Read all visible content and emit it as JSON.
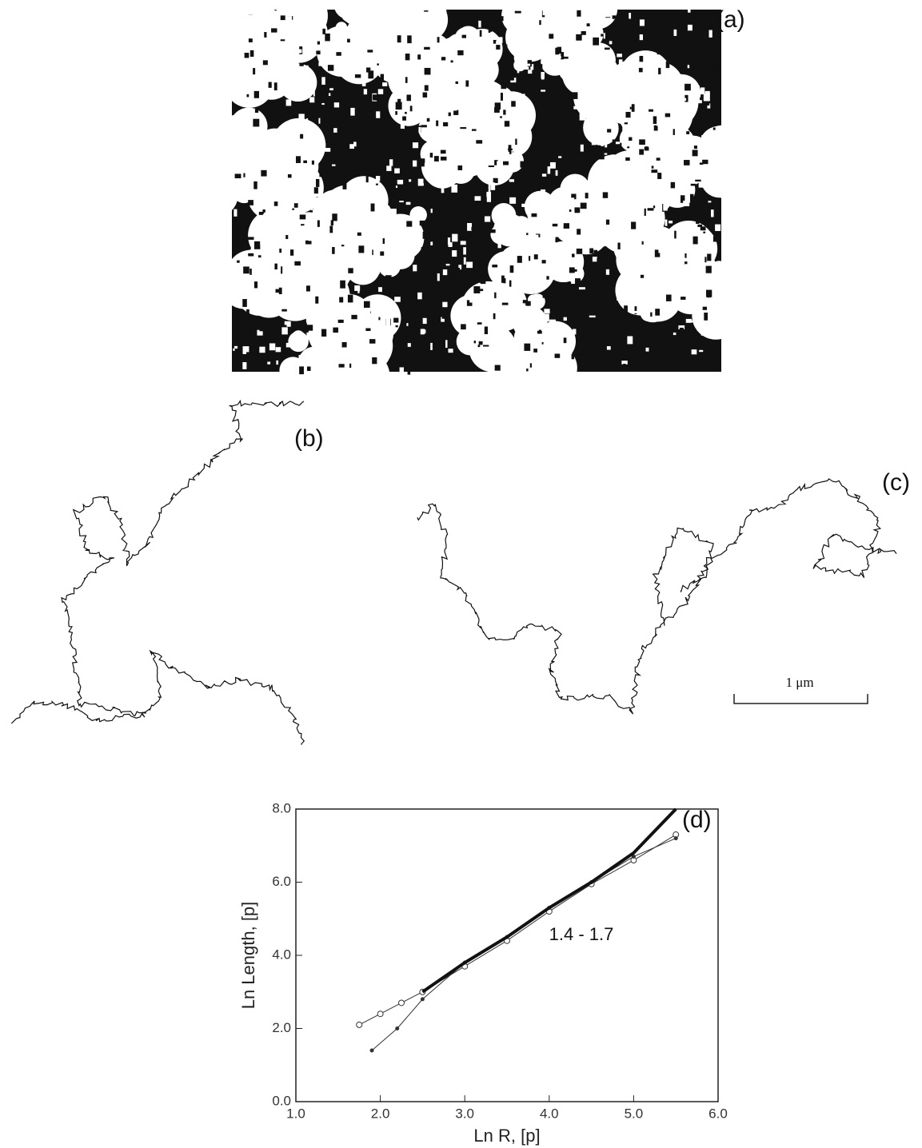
{
  "panels": {
    "a": "(a)",
    "b": "(b)",
    "c": "(c)",
    "d": "(d)"
  },
  "scale_bar": "1 μm",
  "chart_data": {
    "type": "line",
    "xlabel": "Ln R, [p]",
    "ylabel": "Ln Length, [p]",
    "annotation": "1.4 - 1.7",
    "xlim": [
      1,
      6
    ],
    "ylim": [
      0,
      8
    ],
    "xticks": [
      {
        "value": 1,
        "label": "1.0"
      },
      {
        "value": 2,
        "label": "2.0"
      },
      {
        "value": 3,
        "label": "3.0"
      },
      {
        "value": 4,
        "label": "4.0"
      },
      {
        "value": 5,
        "label": "5.0"
      },
      {
        "value": 6,
        "label": "6.0"
      }
    ],
    "yticks": [
      {
        "value": 0,
        "label": "0.0"
      },
      {
        "value": 2,
        "label": "2.0"
      },
      {
        "value": 4,
        "label": "4.0"
      },
      {
        "value": 6,
        "label": "6.0"
      },
      {
        "value": 8,
        "label": "8.0"
      }
    ],
    "series": [
      {
        "color": "#333333",
        "marker": "circle",
        "width": 1,
        "x": [
          1.75,
          2.0,
          2.25,
          2.5,
          3.0,
          3.5,
          4.0,
          4.5,
          5.0,
          5.5
        ],
        "values": [
          2.1,
          2.4,
          2.7,
          3.0,
          3.7,
          4.4,
          5.2,
          5.95,
          6.6,
          7.3
        ]
      },
      {
        "color": "#333333",
        "marker": "dot",
        "width": 1,
        "x": [
          1.9,
          2.2,
          2.5,
          3.0,
          3.5,
          4.0,
          4.5,
          5.0,
          5.5
        ],
        "values": [
          1.4,
          2.0,
          2.8,
          3.8,
          4.5,
          5.3,
          6.0,
          6.7,
          7.2
        ]
      },
      {
        "color": "#111111",
        "marker": "none",
        "width": 4,
        "x": [
          2.5,
          3.0,
          3.5,
          4.0,
          4.5,
          5.0,
          5.5
        ],
        "values": [
          3.0,
          3.8,
          4.5,
          5.3,
          6.0,
          6.8,
          8.0
        ]
      }
    ]
  }
}
